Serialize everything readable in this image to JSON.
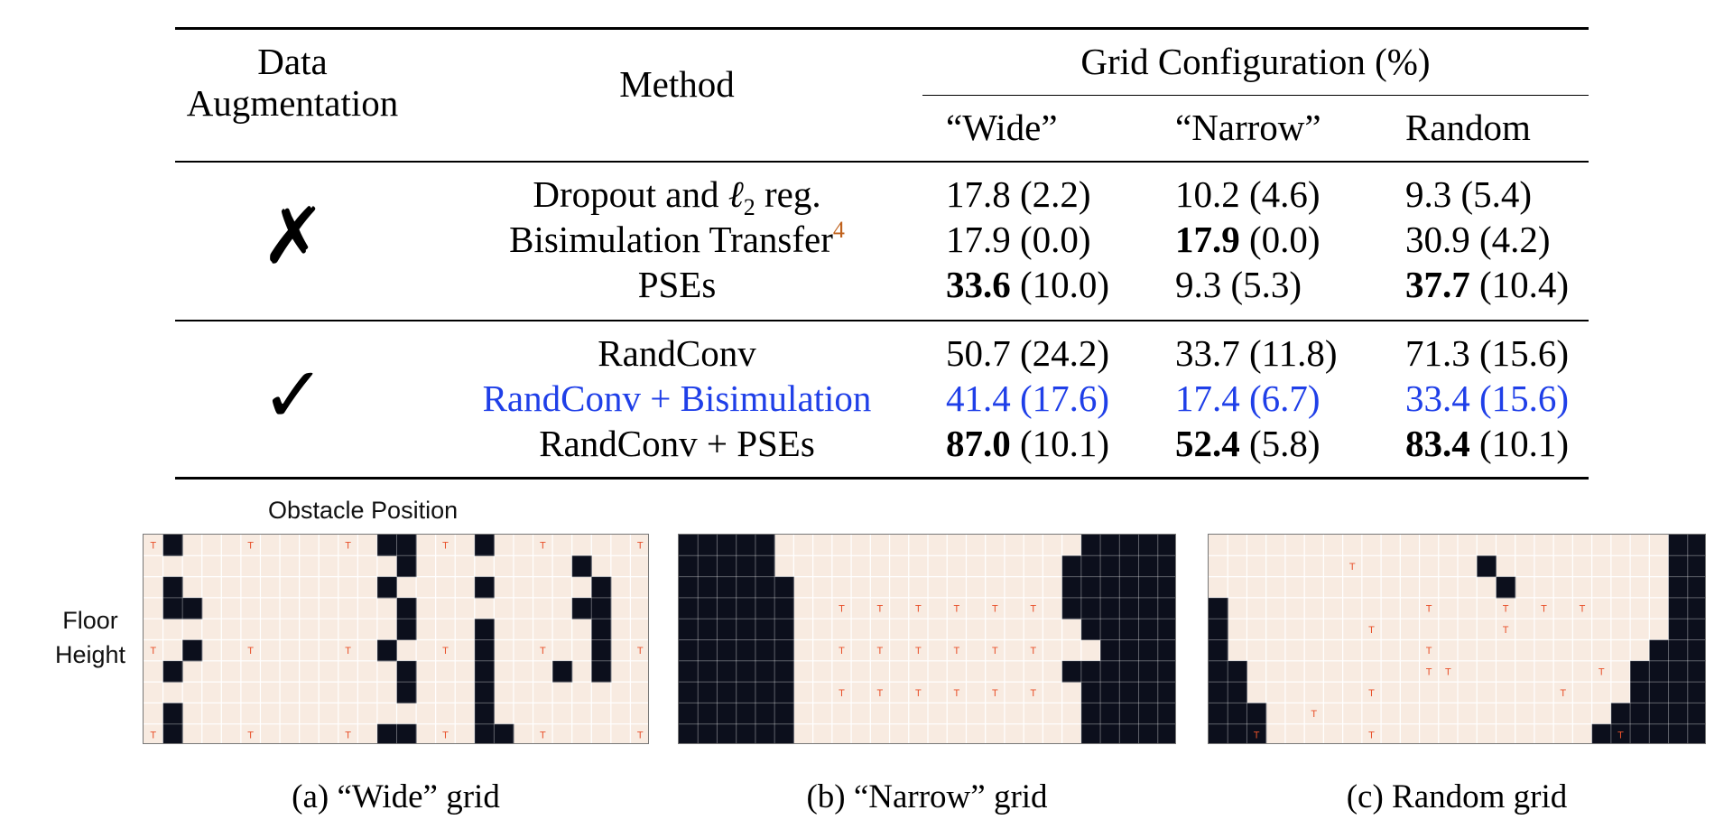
{
  "table": {
    "header": {
      "aug_line1": "Data",
      "aug_line2": "Augmentation",
      "method": "Method",
      "grid_config": "Grid Configuration (%)",
      "col_wide": "“Wide”",
      "col_narrow": "“Narrow”",
      "col_random": "Random"
    },
    "groups": [
      {
        "mark": "✗",
        "rows": [
          {
            "method": "Dropout and ",
            "method_ell": "ℓ",
            "method_sub": "2",
            "method_tail": " reg.",
            "wide": {
              "val": "17.8",
              "sd": " (2.2)"
            },
            "narrow": {
              "val": "10.2",
              "sd": " (4.6)"
            },
            "random": {
              "val": "9.3",
              "sd": " (5.4)"
            }
          },
          {
            "method": "Bisimulation Transfer",
            "cite": "4",
            "wide": {
              "val": "17.9",
              "sd": " (0.0)"
            },
            "narrow": {
              "val": "17.9",
              "sd": " (0.0)"
            },
            "random": {
              "val": "30.9",
              "sd": " (4.2)"
            }
          },
          {
            "method": "PSEs",
            "wide": {
              "val": "33.6",
              "sd": " (10.0)"
            },
            "narrow": {
              "val": "9.3",
              "sd": " (5.3)"
            },
            "random": {
              "val": "37.7",
              "sd": " (10.4)"
            }
          }
        ]
      },
      {
        "mark": "✓",
        "rows": [
          {
            "method": "RandConv",
            "wide": {
              "val": "50.7",
              "sd": " (24.2)"
            },
            "narrow": {
              "val": "33.7",
              "sd": " (11.8)"
            },
            "random": {
              "val": "71.3",
              "sd": " (15.6)"
            }
          },
          {
            "method": "RandConv + Bisimulation",
            "wide": {
              "val": "41.4",
              "sd": " (17.6)"
            },
            "narrow": {
              "val": "17.4",
              "sd": " (6.7)"
            },
            "random": {
              "val": "33.4",
              "sd": " (15.6)"
            }
          },
          {
            "method": "RandConv + PSEs",
            "wide": {
              "val": "87.0",
              "sd": " (10.1)"
            },
            "narrow": {
              "val": "52.4",
              "sd": " (5.8)"
            },
            "random": {
              "val": "83.4",
              "sd": " (10.1)"
            }
          }
        ]
      }
    ]
  },
  "colors": {
    "highlight_row": "#1f3fe8",
    "citation": "#c0621d",
    "grid_background": "#f8ebe1",
    "grid_wall": "#0c0f1c",
    "target_marker": "#e8502a"
  },
  "figure": {
    "obstacle_label": "Obstacle Position",
    "floor_label_1": "Floor",
    "floor_label_2": "Height",
    "target_glyph": "T",
    "captions": {
      "a": "(a) “Wide” grid",
      "b": "(b) “Narrow” grid",
      "c": "(c) Random grid"
    }
  }
}
